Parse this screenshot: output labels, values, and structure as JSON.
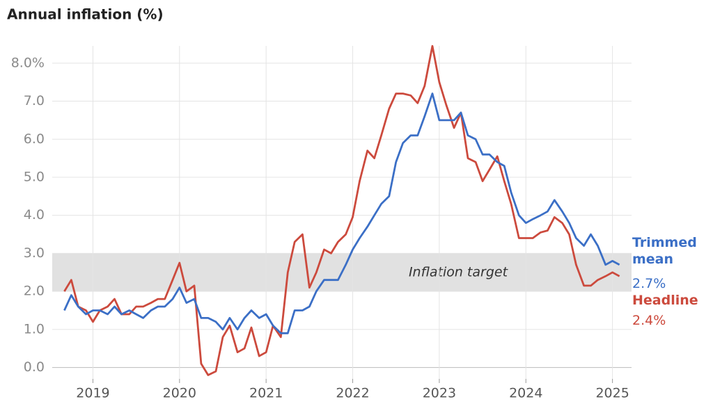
{
  "chart_data": {
    "type": "line",
    "title": "Annual inflation (%)",
    "x": [
      2018.67,
      2018.75,
      2018.83,
      2018.92,
      2019.0,
      2019.08,
      2019.17,
      2019.25,
      2019.33,
      2019.42,
      2019.5,
      2019.58,
      2019.67,
      2019.75,
      2019.83,
      2019.92,
      2020.0,
      2020.08,
      2020.17,
      2020.25,
      2020.33,
      2020.42,
      2020.5,
      2020.58,
      2020.67,
      2020.75,
      2020.83,
      2020.92,
      2021.0,
      2021.08,
      2021.17,
      2021.25,
      2021.33,
      2021.42,
      2021.5,
      2021.58,
      2021.67,
      2021.75,
      2021.83,
      2021.92,
      2022.0,
      2022.08,
      2022.17,
      2022.25,
      2022.33,
      2022.42,
      2022.5,
      2022.58,
      2022.67,
      2022.75,
      2022.83,
      2022.92,
      2023.0,
      2023.08,
      2023.17,
      2023.25,
      2023.33,
      2023.42,
      2023.5,
      2023.58,
      2023.67,
      2023.75,
      2023.83,
      2023.92,
      2024.0,
      2024.08,
      2024.17,
      2024.25,
      2024.33,
      2024.42,
      2024.5,
      2024.58,
      2024.67,
      2024.75,
      2024.83,
      2024.92,
      2025.0,
      2025.08
    ],
    "series": [
      {
        "name": "Trimmed mean",
        "color": "#3b6fc6",
        "last_label": "2.7%",
        "values": [
          1.5,
          1.9,
          1.6,
          1.4,
          1.5,
          1.5,
          1.4,
          1.6,
          1.4,
          1.5,
          1.4,
          1.3,
          1.5,
          1.6,
          1.6,
          1.8,
          2.1,
          1.7,
          1.8,
          1.3,
          1.3,
          1.2,
          1.0,
          1.3,
          1.0,
          1.3,
          1.5,
          1.3,
          1.4,
          1.1,
          0.9,
          0.9,
          1.5,
          1.5,
          1.6,
          2.0,
          2.3,
          2.3,
          2.3,
          2.7,
          3.1,
          3.4,
          3.7,
          4.0,
          4.3,
          4.5,
          5.4,
          5.9,
          6.1,
          6.1,
          6.6,
          7.2,
          6.5,
          6.5,
          6.5,
          6.7,
          6.1,
          6.0,
          5.6,
          5.6,
          5.4,
          5.3,
          4.6,
          4.0,
          3.8,
          3.9,
          4.0,
          4.1,
          4.4,
          4.1,
          3.8,
          3.4,
          3.2,
          3.5,
          3.2,
          2.7,
          2.8,
          2.7
        ]
      },
      {
        "name": "Headline",
        "color": "#cc4a3d",
        "last_label": "2.4%",
        "values": [
          2.0,
          2.3,
          1.6,
          1.5,
          1.2,
          1.5,
          1.6,
          1.8,
          1.4,
          1.4,
          1.6,
          1.6,
          1.7,
          1.8,
          1.8,
          2.3,
          2.75,
          2.0,
          2.15,
          0.1,
          -0.2,
          -0.1,
          0.8,
          1.1,
          0.4,
          0.5,
          1.05,
          0.3,
          0.4,
          1.1,
          0.8,
          2.5,
          3.3,
          3.5,
          2.1,
          2.5,
          3.1,
          3.0,
          3.3,
          3.5,
          3.95,
          4.9,
          5.7,
          5.5,
          6.1,
          6.8,
          7.2,
          7.2,
          7.15,
          6.95,
          7.4,
          8.45,
          7.5,
          6.9,
          6.3,
          6.7,
          5.5,
          5.4,
          4.9,
          5.2,
          5.55,
          4.9,
          4.3,
          3.4,
          3.4,
          3.4,
          3.55,
          3.6,
          3.95,
          3.8,
          3.5,
          2.7,
          2.15,
          2.15,
          2.3,
          2.4,
          2.5,
          2.4
        ]
      }
    ],
    "band": {
      "label": "Inflation target",
      "range": [
        2,
        3
      ],
      "color": "#e1e1e1"
    },
    "xlim": [
      2018.53,
      2025.22
    ],
    "xticks": [
      2019,
      2020,
      2021,
      2022,
      2023,
      2024,
      2025
    ],
    "ylim": [
      -0.3,
      8.6
    ],
    "yticks": [
      {
        "value": 0,
        "label": "0.0"
      },
      {
        "value": 1,
        "label": "1.0"
      },
      {
        "value": 2,
        "label": "2.0"
      },
      {
        "value": 3,
        "label": "3.0"
      },
      {
        "value": 4,
        "label": "4.0"
      },
      {
        "value": 5,
        "label": "5.0"
      },
      {
        "value": 6,
        "label": "6.0"
      },
      {
        "value": 7,
        "label": "7.0"
      },
      {
        "value": 8,
        "label": "8.0%"
      }
    ],
    "grid": true
  }
}
